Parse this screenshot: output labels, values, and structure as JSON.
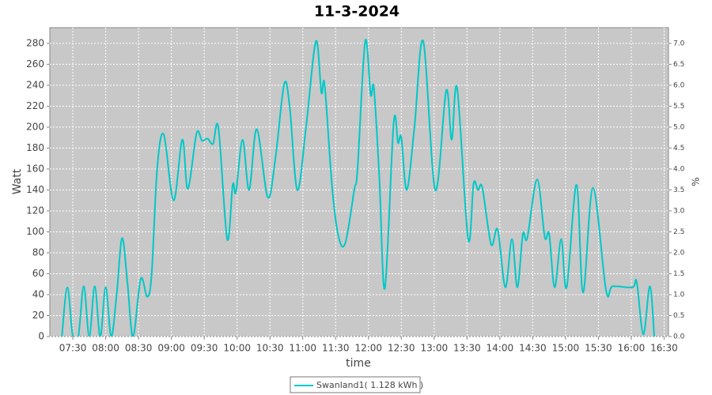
{
  "chart_data": {
    "type": "line",
    "title": "11-3-2024",
    "x_label": "time",
    "y_label": "Watt",
    "y2_label": "%",
    "x": [
      "07:20",
      "07:25",
      "07:30",
      "07:35",
      "07:40",
      "07:45",
      "07:50",
      "07:55",
      "08:00",
      "08:05",
      "08:10",
      "08:15",
      "08:20",
      "08:25",
      "08:32",
      "08:38",
      "08:42",
      "08:47",
      "08:53",
      "09:02",
      "09:10",
      "09:15",
      "09:23",
      "09:28",
      "09:33",
      "09:38",
      "09:43",
      "09:51",
      "09:56",
      "09:59",
      "10:05",
      "10:11",
      "10:18",
      "10:28",
      "10:35",
      "10:43",
      "10:48",
      "10:55",
      "11:03",
      "11:12",
      "11:17",
      "11:20",
      "11:27",
      "11:33",
      "11:39",
      "11:47",
      "11:50",
      "11:57",
      "12:02",
      "12:05",
      "12:10",
      "12:15",
      "12:23",
      "12:27",
      "12:30",
      "12:35",
      "12:42",
      "12:50",
      "13:01",
      "13:11",
      "13:16",
      "13:21",
      "13:31",
      "13:36",
      "13:40",
      "13:44",
      "13:52",
      "13:58",
      "14:05",
      "14:11",
      "14:16",
      "14:21",
      "14:25",
      "14:34",
      "14:41",
      "14:45",
      "14:50",
      "14:56",
      "15:01",
      "15:10",
      "15:16",
      "15:25",
      "15:37",
      "15:43",
      "16:01",
      "16:05",
      "16:11",
      "16:17",
      "16:21"
    ],
    "series": [
      {
        "name": "Swanland1( 1.128 kWh )",
        "color": "#00c8c8",
        "values": [
          0,
          47,
          0,
          0,
          48,
          0,
          48,
          0,
          47,
          0,
          40,
          94,
          50,
          0,
          55,
          38,
          60,
          160,
          193,
          130,
          188,
          141,
          194,
          187,
          189,
          184,
          199,
          93,
          145,
          138,
          188,
          140,
          198,
          133,
          170,
          241,
          220,
          140,
          200,
          282,
          233,
          240,
          140,
          94,
          90,
          140,
          160,
          282,
          231,
          237,
          150,
          46,
          204,
          185,
          190,
          140,
          200,
          282,
          140,
          235,
          188,
          237,
          93,
          146,
          140,
          142,
          88,
          102,
          47,
          93,
          47,
          98,
          94,
          150,
          95,
          98,
          47,
          93,
          47,
          145,
          42,
          142,
          44,
          48,
          47,
          52,
          2,
          48,
          0
        ]
      }
    ],
    "xlim": [
      "07:09",
      "16:34"
    ],
    "xticks": [
      "07:30",
      "08:00",
      "08:30",
      "09:00",
      "09:30",
      "10:00",
      "10:30",
      "11:00",
      "11:30",
      "12:00",
      "12:30",
      "13:00",
      "13:30",
      "14:00",
      "14:30",
      "15:00",
      "15:30",
      "16:00",
      "16:30"
    ],
    "ylim": [
      0,
      295
    ],
    "yticks": [
      0,
      20,
      40,
      60,
      80,
      100,
      120,
      140,
      160,
      180,
      200,
      220,
      240,
      260,
      280
    ],
    "y2lim": [
      0,
      7.375
    ],
    "y2ticks": [
      {
        "value": 0,
        "label": "0.0"
      },
      0.5,
      {
        "value": 1,
        "label": "1.0"
      },
      1.5,
      {
        "value": 2,
        "label": "2.0"
      },
      2.5,
      {
        "value": 3,
        "label": "3.0"
      },
      3.5,
      {
        "value": 4,
        "label": "4.0"
      },
      4.5,
      {
        "value": 5,
        "label": "5.0"
      },
      5.5,
      {
        "value": 6,
        "label": "6.0"
      },
      6.5,
      {
        "value": 7,
        "label": "7.0"
      }
    ],
    "grid": true,
    "legend": "bottom"
  }
}
